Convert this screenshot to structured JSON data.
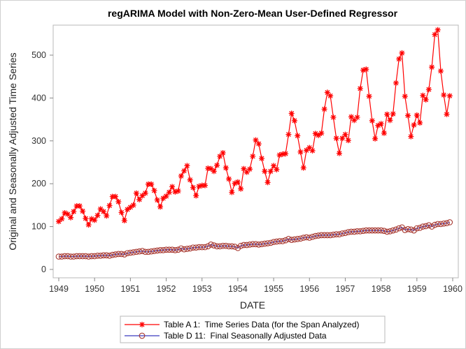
{
  "chart_data": {
    "type": "line",
    "title": "regARIMA Model with Non-Zero-Mean User-Defined Regressor",
    "xlabel": "DATE",
    "ylabel": "Original and Seasonally Adjusted Time Series",
    "xlim": [
      1949,
      1960
    ],
    "ylim": [
      0,
      560
    ],
    "x_ticks": [
      "1949",
      "1950",
      "1951",
      "1952",
      "1953",
      "1954",
      "1955",
      "1956",
      "1957",
      "1958",
      "1959",
      "1960"
    ],
    "y_ticks": [
      "0",
      "100",
      "200",
      "300",
      "400",
      "500"
    ],
    "x_start": "1949-01",
    "frequency": "monthly",
    "legend_position": "bottom",
    "grid": false,
    "series": [
      {
        "name": "Table A 1:  Time Series Data (for the Span Analyzed)",
        "color": "#ff0000",
        "marker": "asterisk",
        "values": [
          112,
          118,
          132,
          129,
          121,
          135,
          148,
          148,
          136,
          119,
          104,
          118,
          115,
          126,
          141,
          135,
          125,
          149,
          170,
          170,
          158,
          133,
          114,
          140,
          145,
          150,
          178,
          163,
          172,
          178,
          199,
          199,
          184,
          162,
          146,
          166,
          171,
          180,
          193,
          181,
          183,
          218,
          230,
          242,
          209,
          191,
          172,
          194,
          196,
          196,
          236,
          235,
          229,
          243,
          264,
          272,
          237,
          211,
          180,
          201,
          204,
          188,
          235,
          227,
          234,
          264,
          302,
          293,
          259,
          229,
          203,
          229,
          242,
          233,
          267,
          269,
          270,
          315,
          364,
          347,
          312,
          274,
          237,
          278,
          284,
          277,
          317,
          313,
          318,
          374,
          413,
          405,
          355,
          306,
          271,
          306,
          315,
          301,
          356,
          348,
          355,
          422,
          465,
          467,
          404,
          347,
          305,
          336,
          340,
          318,
          362,
          348,
          363,
          435,
          491,
          505,
          404,
          359,
          310,
          337,
          360,
          342,
          406,
          396,
          420,
          472,
          548,
          559,
          463,
          407,
          362,
          405
        ]
      },
      {
        "name": "Table D 11:  Final Seasonally Adjusted Data",
        "color": "#3b3bbf",
        "marker_color": "#a83a32",
        "marker": "circle",
        "values": [
          30,
          30,
          31,
          31,
          30,
          30,
          31,
          31,
          31,
          31,
          30,
          31,
          31,
          32,
          32,
          33,
          33,
          32,
          34,
          35,
          36,
          36,
          35,
          38,
          39,
          40,
          41,
          42,
          43,
          41,
          41,
          42,
          43,
          44,
          45,
          45,
          46,
          46,
          46,
          45,
          46,
          49,
          47,
          48,
          49,
          51,
          51,
          52,
          52,
          52,
          54,
          58,
          56,
          54,
          54,
          55,
          55,
          54,
          54,
          53,
          50,
          55,
          57,
          57,
          58,
          59,
          59,
          58,
          59,
          60,
          61,
          62,
          64,
          65,
          66,
          66,
          68,
          71,
          69,
          70,
          71,
          72,
          74,
          75,
          74,
          76,
          78,
          79,
          80,
          80,
          80,
          80,
          81,
          82,
          82,
          84,
          85,
          87,
          88,
          88,
          89,
          89,
          90,
          91,
          91,
          91,
          91,
          91,
          91,
          90,
          88,
          89,
          91,
          93,
          96,
          98,
          92,
          94,
          93,
          91,
          96,
          97,
          100,
          101,
          103,
          100,
          104,
          106,
          106,
          107,
          108,
          110
        ]
      }
    ]
  }
}
